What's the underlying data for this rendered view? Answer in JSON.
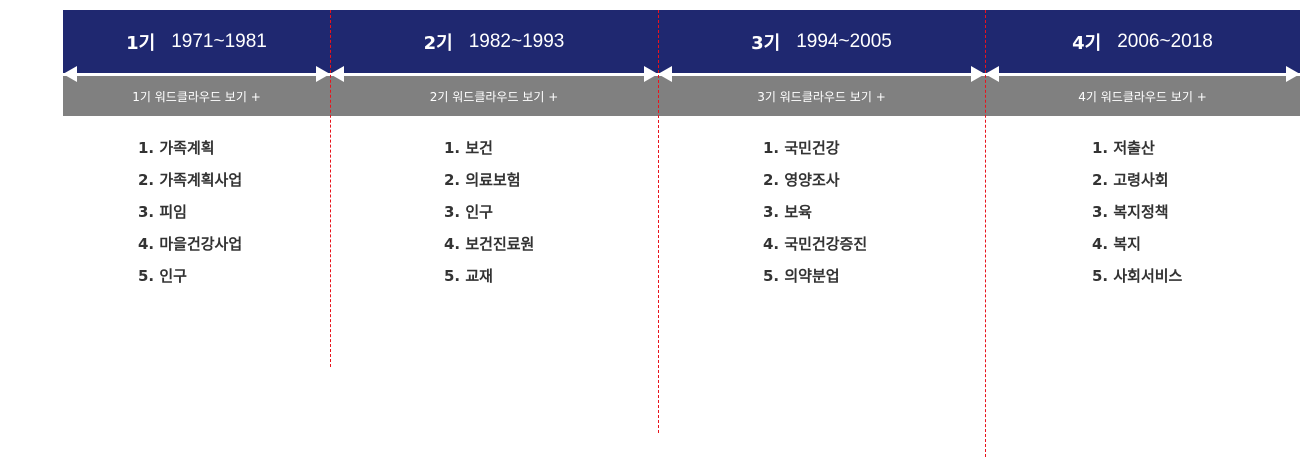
{
  "periods": [
    {
      "gen": "1기",
      "years": "1971~1981",
      "wordcloud": "1기 워드클라우드 보기 +",
      "keywords": [
        "1. 가족계획",
        "2. 가족계획사업",
        "3. 피임",
        "4. 마을건강사업",
        "5. 인구"
      ]
    },
    {
      "gen": "2기",
      "years": "1982~1993",
      "wordcloud": "2기 워드클라우드 보기 +",
      "keywords": [
        "1. 보건",
        "2. 의료보험",
        "3. 인구",
        "4. 보건진료원",
        "5. 교재"
      ]
    },
    {
      "gen": "3기",
      "years": "1994~2005",
      "wordcloud": "3기 워드클라우드 보기 +",
      "keywords": [
        "1. 국민건강",
        "2. 영양조사",
        "3. 보육",
        "4. 국민건강증진",
        "5. 의약분업"
      ]
    },
    {
      "gen": "4기",
      "years": "2006~2018",
      "wordcloud": "4기 워드클라우드 보기 +",
      "keywords": [
        "1. 저출산",
        "2. 고령사회",
        "3. 복지정책",
        "4. 복지",
        "5. 사회서비스"
      ]
    }
  ],
  "colors": {
    "header": "#1f2870",
    "subbar": "#808080",
    "divider": "#e8141c"
  }
}
